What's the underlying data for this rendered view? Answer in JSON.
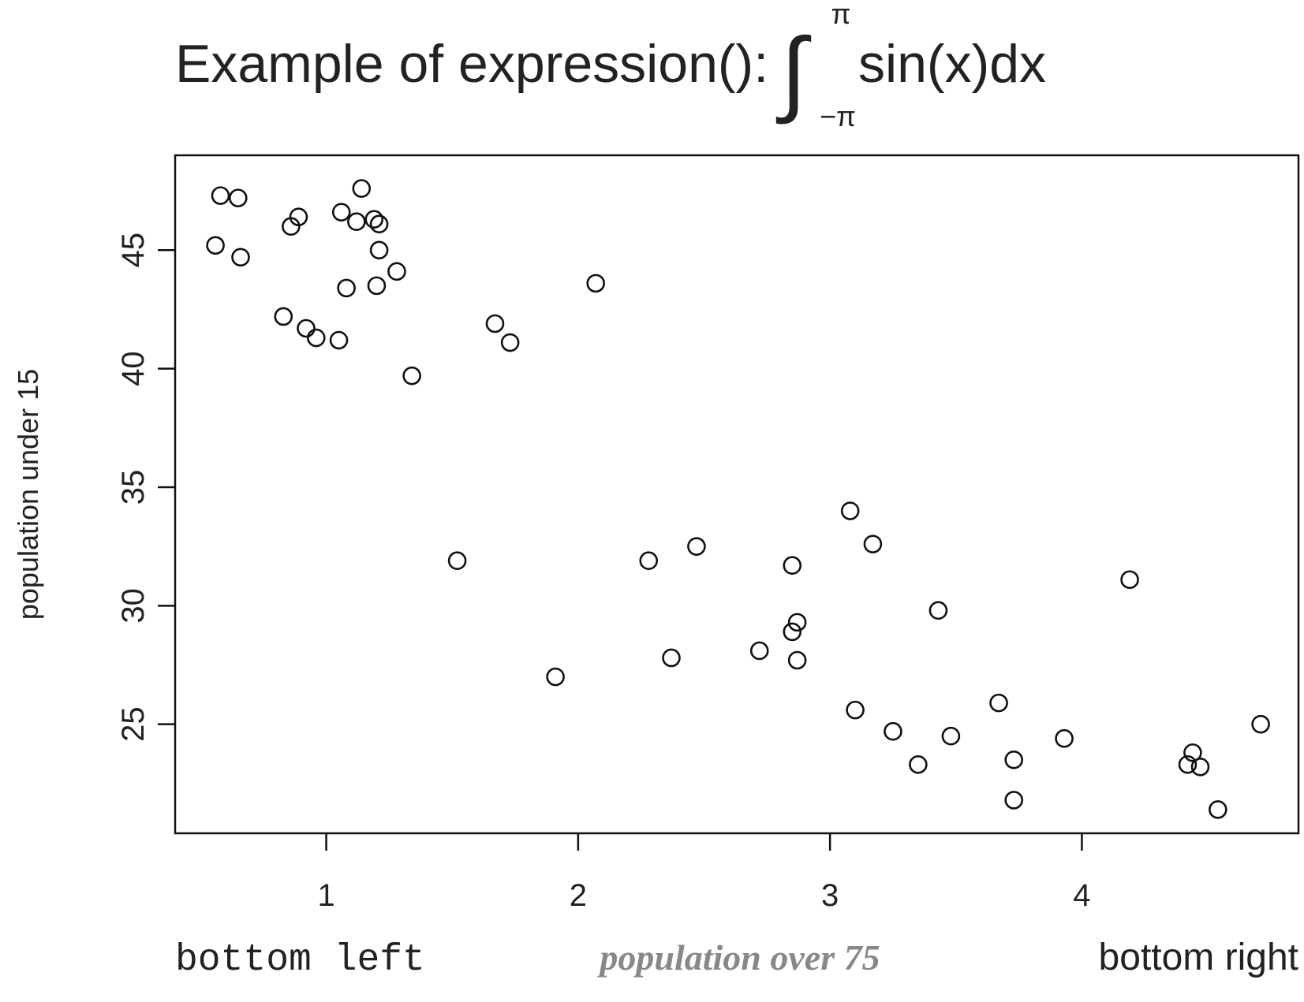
{
  "chart_data": {
    "type": "scatter",
    "title": {
      "prefix": "Example of expression():",
      "integral_upper": "π",
      "integral_lower": "−π",
      "body": "sin(x)dx"
    },
    "ylabel": "population under 15",
    "xlabel": "population over 75",
    "bottom_left_text": "bottom left",
    "bottom_right_text": "bottom right",
    "xlim": [
      0.4,
      4.86
    ],
    "ylim": [
      20.4,
      49.0
    ],
    "x_ticks": [
      1,
      2,
      3,
      4
    ],
    "y_ticks": [
      25,
      30,
      35,
      40,
      45
    ],
    "grid": false,
    "marker": "open-circle",
    "colors": {
      "points": "#111111",
      "xlabel": "#888888",
      "text": "#222222"
    },
    "points": [
      {
        "x": 0.56,
        "y": 45.2
      },
      {
        "x": 0.58,
        "y": 47.3
      },
      {
        "x": 0.65,
        "y": 47.2
      },
      {
        "x": 0.66,
        "y": 44.7
      },
      {
        "x": 0.83,
        "y": 42.2
      },
      {
        "x": 0.86,
        "y": 46.0
      },
      {
        "x": 0.89,
        "y": 46.4
      },
      {
        "x": 0.92,
        "y": 41.7
      },
      {
        "x": 0.96,
        "y": 41.3
      },
      {
        "x": 1.05,
        "y": 41.2
      },
      {
        "x": 1.06,
        "y": 46.6
      },
      {
        "x": 1.08,
        "y": 43.4
      },
      {
        "x": 1.12,
        "y": 46.2
      },
      {
        "x": 1.14,
        "y": 47.6
      },
      {
        "x": 1.19,
        "y": 46.3
      },
      {
        "x": 1.2,
        "y": 43.5
      },
      {
        "x": 1.21,
        "y": 46.1
      },
      {
        "x": 1.21,
        "y": 45.0
      },
      {
        "x": 1.28,
        "y": 44.1
      },
      {
        "x": 1.34,
        "y": 39.7
      },
      {
        "x": 1.52,
        "y": 31.9
      },
      {
        "x": 1.67,
        "y": 41.9
      },
      {
        "x": 1.73,
        "y": 41.1
      },
      {
        "x": 1.91,
        "y": 27.0
      },
      {
        "x": 2.07,
        "y": 43.6
      },
      {
        "x": 2.28,
        "y": 31.9
      },
      {
        "x": 2.37,
        "y": 27.8
      },
      {
        "x": 2.47,
        "y": 32.5
      },
      {
        "x": 2.72,
        "y": 28.1
      },
      {
        "x": 2.85,
        "y": 31.7
      },
      {
        "x": 2.85,
        "y": 28.9
      },
      {
        "x": 2.87,
        "y": 29.3
      },
      {
        "x": 2.87,
        "y": 27.7
      },
      {
        "x": 3.08,
        "y": 34.0
      },
      {
        "x": 3.1,
        "y": 25.6
      },
      {
        "x": 3.17,
        "y": 32.6
      },
      {
        "x": 3.25,
        "y": 24.7
      },
      {
        "x": 3.35,
        "y": 23.3
      },
      {
        "x": 3.43,
        "y": 29.8
      },
      {
        "x": 3.48,
        "y": 24.5
      },
      {
        "x": 3.67,
        "y": 25.9
      },
      {
        "x": 3.73,
        "y": 23.5
      },
      {
        "x": 3.73,
        "y": 21.8
      },
      {
        "x": 3.93,
        "y": 24.4
      },
      {
        "x": 4.19,
        "y": 31.1
      },
      {
        "x": 4.42,
        "y": 23.3
      },
      {
        "x": 4.44,
        "y": 23.8
      },
      {
        "x": 4.47,
        "y": 23.2
      },
      {
        "x": 4.54,
        "y": 21.4
      },
      {
        "x": 4.71,
        "y": 25.0
      }
    ]
  }
}
